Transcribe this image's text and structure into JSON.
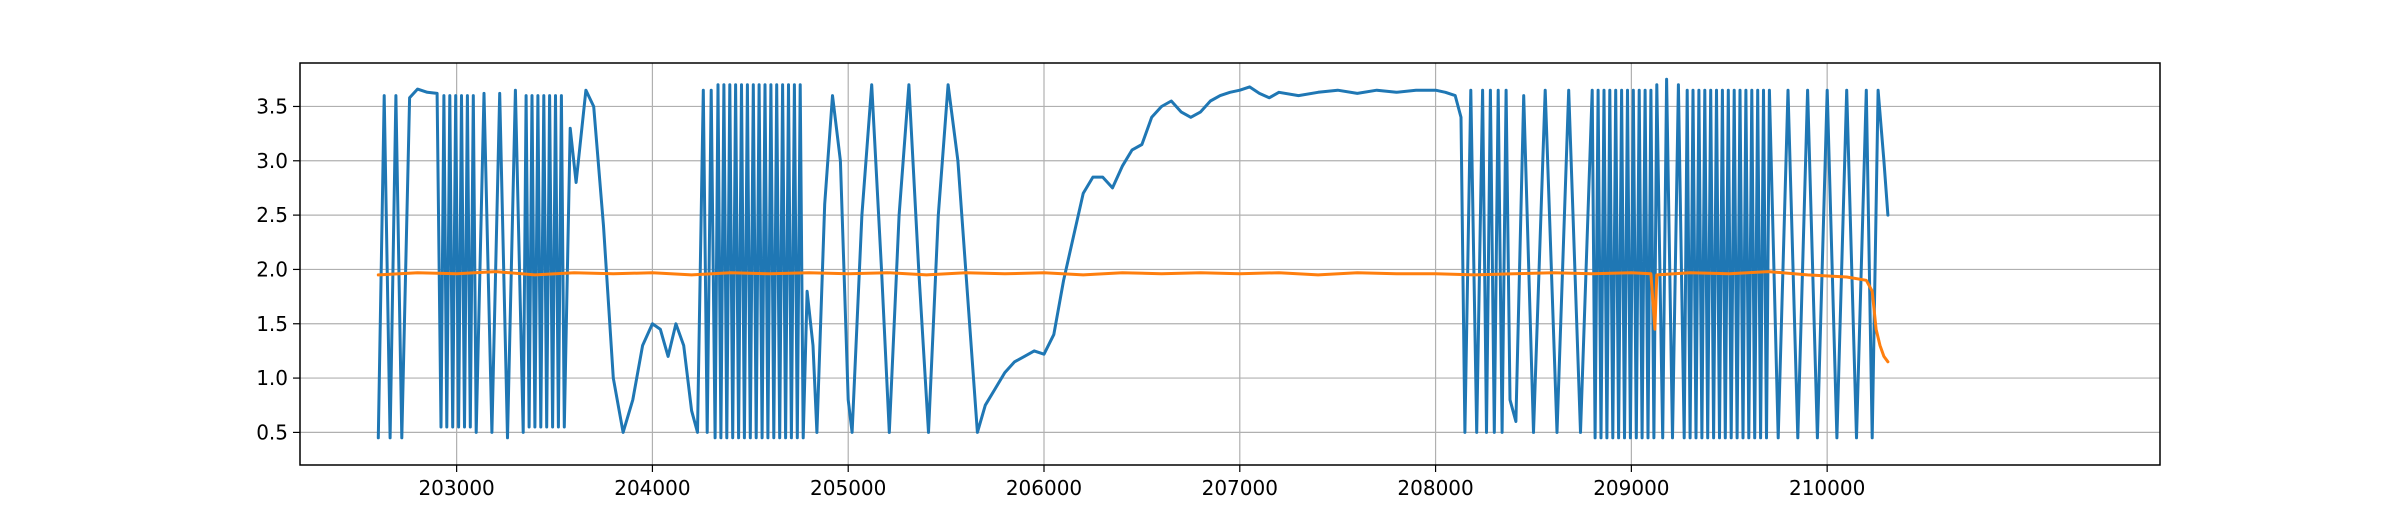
{
  "chart_data": {
    "type": "line",
    "title": "",
    "xlabel": "",
    "ylabel": "",
    "xlim": [
      202200,
      211700
    ],
    "ylim": [
      0.2,
      3.9
    ],
    "grid": true,
    "legend": "none",
    "xticks": [
      203000,
      204000,
      205000,
      206000,
      207000,
      208000,
      209000,
      210000
    ],
    "xtick_labels": [
      "203000",
      "204000",
      "205000",
      "206000",
      "207000",
      "208000",
      "209000",
      "210000"
    ],
    "yticks": [
      0.5,
      1.0,
      1.5,
      2.0,
      2.5,
      3.0,
      3.5
    ],
    "ytick_labels": [
      "0.5",
      "1.0",
      "1.5",
      "2.0",
      "2.5",
      "3.0",
      "3.5"
    ],
    "series": [
      {
        "color": "#1f77b4",
        "points": [
          [
            202600,
            0.45
          ],
          [
            202630,
            3.6
          ],
          [
            202660,
            0.45
          ],
          [
            202690,
            3.6
          ],
          [
            202720,
            0.45
          ],
          [
            202760,
            3.58
          ],
          [
            202800,
            3.66
          ],
          [
            202850,
            3.63
          ],
          [
            202900,
            3.62
          ],
          [
            202920,
            0.55
          ],
          [
            202935,
            3.6
          ],
          [
            202950,
            0.55
          ],
          [
            202965,
            3.6
          ],
          [
            202980,
            0.55
          ],
          [
            202995,
            3.6
          ],
          [
            203010,
            0.55
          ],
          [
            203025,
            3.6
          ],
          [
            203040,
            0.55
          ],
          [
            203055,
            3.6
          ],
          [
            203070,
            0.55
          ],
          [
            203085,
            3.6
          ],
          [
            203100,
            0.5
          ],
          [
            203140,
            3.62
          ],
          [
            203180,
            0.5
          ],
          [
            203220,
            3.62
          ],
          [
            203260,
            0.45
          ],
          [
            203300,
            3.65
          ],
          [
            203340,
            0.5
          ],
          [
            203355,
            3.6
          ],
          [
            203370,
            0.55
          ],
          [
            203385,
            3.6
          ],
          [
            203400,
            0.55
          ],
          [
            203415,
            3.6
          ],
          [
            203430,
            0.55
          ],
          [
            203445,
            3.6
          ],
          [
            203460,
            0.55
          ],
          [
            203475,
            3.6
          ],
          [
            203490,
            0.55
          ],
          [
            203505,
            3.6
          ],
          [
            203520,
            0.55
          ],
          [
            203535,
            3.6
          ],
          [
            203550,
            0.55
          ],
          [
            203580,
            3.3
          ],
          [
            203610,
            2.8
          ],
          [
            203660,
            3.65
          ],
          [
            203700,
            3.5
          ],
          [
            203750,
            2.4
          ],
          [
            203800,
            1.0
          ],
          [
            203850,
            0.5
          ],
          [
            203900,
            0.8
          ],
          [
            203950,
            1.3
          ],
          [
            204000,
            1.5
          ],
          [
            204040,
            1.45
          ],
          [
            204080,
            1.2
          ],
          [
            204120,
            1.5
          ],
          [
            204160,
            1.3
          ],
          [
            204200,
            0.7
          ],
          [
            204230,
            0.5
          ],
          [
            204260,
            3.65
          ],
          [
            204280,
            0.5
          ],
          [
            204300,
            3.65
          ],
          [
            204320,
            0.45
          ],
          [
            204335,
            3.7
          ],
          [
            204350,
            0.45
          ],
          [
            204365,
            3.7
          ],
          [
            204380,
            0.45
          ],
          [
            204395,
            3.7
          ],
          [
            204410,
            0.45
          ],
          [
            204425,
            3.7
          ],
          [
            204440,
            0.45
          ],
          [
            204455,
            3.7
          ],
          [
            204470,
            0.45
          ],
          [
            204485,
            3.7
          ],
          [
            204500,
            0.45
          ],
          [
            204515,
            3.7
          ],
          [
            204530,
            0.45
          ],
          [
            204545,
            3.7
          ],
          [
            204560,
            0.45
          ],
          [
            204575,
            3.7
          ],
          [
            204590,
            0.45
          ],
          [
            204605,
            3.7
          ],
          [
            204620,
            0.45
          ],
          [
            204635,
            3.7
          ],
          [
            204650,
            0.45
          ],
          [
            204665,
            3.7
          ],
          [
            204680,
            0.45
          ],
          [
            204695,
            3.7
          ],
          [
            204710,
            0.45
          ],
          [
            204725,
            3.7
          ],
          [
            204740,
            0.45
          ],
          [
            204755,
            3.7
          ],
          [
            204770,
            0.45
          ],
          [
            204790,
            1.8
          ],
          [
            204820,
            1.3
          ],
          [
            204840,
            0.5
          ],
          [
            204880,
            2.6
          ],
          [
            204920,
            3.6
          ],
          [
            204960,
            3.0
          ],
          [
            205000,
            0.8
          ],
          [
            205020,
            0.5
          ],
          [
            205070,
            2.5
          ],
          [
            205120,
            3.7
          ],
          [
            205170,
            2.0
          ],
          [
            205210,
            0.5
          ],
          [
            205260,
            2.5
          ],
          [
            205310,
            3.7
          ],
          [
            205360,
            2.0
          ],
          [
            205410,
            0.5
          ],
          [
            205460,
            2.5
          ],
          [
            205510,
            3.7
          ],
          [
            205560,
            3.0
          ],
          [
            205620,
            1.5
          ],
          [
            205660,
            0.5
          ],
          [
            205700,
            0.75
          ],
          [
            205750,
            0.9
          ],
          [
            205800,
            1.05
          ],
          [
            205850,
            1.15
          ],
          [
            205900,
            1.2
          ],
          [
            205950,
            1.25
          ],
          [
            206000,
            1.22
          ],
          [
            206050,
            1.4
          ],
          [
            206100,
            1.9
          ],
          [
            206150,
            2.3
          ],
          [
            206200,
            2.7
          ],
          [
            206250,
            2.85
          ],
          [
            206300,
            2.85
          ],
          [
            206350,
            2.75
          ],
          [
            206400,
            2.95
          ],
          [
            206450,
            3.1
          ],
          [
            206500,
            3.15
          ],
          [
            206550,
            3.4
          ],
          [
            206600,
            3.5
          ],
          [
            206650,
            3.55
          ],
          [
            206700,
            3.45
          ],
          [
            206750,
            3.4
          ],
          [
            206800,
            3.45
          ],
          [
            206850,
            3.55
          ],
          [
            206900,
            3.6
          ],
          [
            206950,
            3.63
          ],
          [
            207000,
            3.65
          ],
          [
            207050,
            3.68
          ],
          [
            207100,
            3.62
          ],
          [
            207150,
            3.58
          ],
          [
            207200,
            3.63
          ],
          [
            207300,
            3.6
          ],
          [
            207400,
            3.63
          ],
          [
            207500,
            3.65
          ],
          [
            207600,
            3.62
          ],
          [
            207700,
            3.65
          ],
          [
            207800,
            3.63
          ],
          [
            207900,
            3.65
          ],
          [
            208000,
            3.65
          ],
          [
            208050,
            3.63
          ],
          [
            208100,
            3.6
          ],
          [
            208130,
            3.4
          ],
          [
            208150,
            0.5
          ],
          [
            208180,
            3.65
          ],
          [
            208210,
            0.5
          ],
          [
            208240,
            3.65
          ],
          [
            208260,
            0.5
          ],
          [
            208280,
            3.65
          ],
          [
            208300,
            0.5
          ],
          [
            208320,
            3.65
          ],
          [
            208340,
            0.5
          ],
          [
            208360,
            3.65
          ],
          [
            208380,
            0.8
          ],
          [
            208410,
            0.6
          ],
          [
            208450,
            3.6
          ],
          [
            208500,
            0.5
          ],
          [
            208560,
            3.65
          ],
          [
            208620,
            0.5
          ],
          [
            208680,
            3.65
          ],
          [
            208740,
            0.5
          ],
          [
            208800,
            3.65
          ],
          [
            208815,
            0.45
          ],
          [
            208830,
            3.65
          ],
          [
            208845,
            0.45
          ],
          [
            208860,
            3.65
          ],
          [
            208875,
            0.45
          ],
          [
            208890,
            3.65
          ],
          [
            208905,
            0.45
          ],
          [
            208920,
            3.65
          ],
          [
            208935,
            0.45
          ],
          [
            208950,
            3.65
          ],
          [
            208965,
            0.45
          ],
          [
            208980,
            3.65
          ],
          [
            208995,
            0.45
          ],
          [
            209010,
            3.65
          ],
          [
            209025,
            0.45
          ],
          [
            209040,
            3.65
          ],
          [
            209055,
            0.45
          ],
          [
            209070,
            3.65
          ],
          [
            209085,
            0.45
          ],
          [
            209100,
            3.65
          ],
          [
            209115,
            0.45
          ],
          [
            209130,
            3.7
          ],
          [
            209160,
            0.45
          ],
          [
            209180,
            3.75
          ],
          [
            209210,
            0.45
          ],
          [
            209240,
            3.7
          ],
          [
            209270,
            0.45
          ],
          [
            209285,
            3.65
          ],
          [
            209300,
            0.45
          ],
          [
            209315,
            3.65
          ],
          [
            209330,
            0.45
          ],
          [
            209345,
            3.65
          ],
          [
            209360,
            0.45
          ],
          [
            209375,
            3.65
          ],
          [
            209390,
            0.45
          ],
          [
            209405,
            3.65
          ],
          [
            209420,
            0.45
          ],
          [
            209435,
            3.65
          ],
          [
            209450,
            0.45
          ],
          [
            209465,
            3.65
          ],
          [
            209480,
            0.45
          ],
          [
            209495,
            3.65
          ],
          [
            209510,
            0.45
          ],
          [
            209525,
            3.65
          ],
          [
            209540,
            0.45
          ],
          [
            209555,
            3.65
          ],
          [
            209570,
            0.45
          ],
          [
            209585,
            3.65
          ],
          [
            209600,
            0.45
          ],
          [
            209615,
            3.65
          ],
          [
            209630,
            0.45
          ],
          [
            209645,
            3.65
          ],
          [
            209660,
            0.45
          ],
          [
            209675,
            3.65
          ],
          [
            209690,
            0.45
          ],
          [
            209705,
            3.65
          ],
          [
            209750,
            0.45
          ],
          [
            209800,
            3.65
          ],
          [
            209850,
            0.45
          ],
          [
            209900,
            3.65
          ],
          [
            209950,
            0.45
          ],
          [
            210000,
            3.65
          ],
          [
            210050,
            0.45
          ],
          [
            210100,
            3.65
          ],
          [
            210150,
            0.45
          ],
          [
            210200,
            3.65
          ],
          [
            210230,
            0.45
          ],
          [
            210260,
            3.65
          ],
          [
            210290,
            3.0
          ],
          [
            210310,
            2.5
          ]
        ]
      },
      {
        "color": "#ff7f0e",
        "points": [
          [
            202600,
            1.95
          ],
          [
            202800,
            1.97
          ],
          [
            203000,
            1.96
          ],
          [
            203200,
            1.98
          ],
          [
            203400,
            1.95
          ],
          [
            203600,
            1.97
          ],
          [
            203800,
            1.96
          ],
          [
            204000,
            1.97
          ],
          [
            204200,
            1.95
          ],
          [
            204400,
            1.97
          ],
          [
            204600,
            1.96
          ],
          [
            204800,
            1.97
          ],
          [
            205000,
            1.96
          ],
          [
            205200,
            1.97
          ],
          [
            205400,
            1.95
          ],
          [
            205600,
            1.97
          ],
          [
            205800,
            1.96
          ],
          [
            206000,
            1.97
          ],
          [
            206200,
            1.95
          ],
          [
            206400,
            1.97
          ],
          [
            206600,
            1.96
          ],
          [
            206800,
            1.97
          ],
          [
            207000,
            1.96
          ],
          [
            207200,
            1.97
          ],
          [
            207400,
            1.95
          ],
          [
            207600,
            1.97
          ],
          [
            207800,
            1.96
          ],
          [
            208000,
            1.96
          ],
          [
            208200,
            1.95
          ],
          [
            208400,
            1.96
          ],
          [
            208600,
            1.97
          ],
          [
            208800,
            1.96
          ],
          [
            209000,
            1.97
          ],
          [
            209100,
            1.96
          ],
          [
            209120,
            1.45
          ],
          [
            209130,
            1.95
          ],
          [
            209300,
            1.97
          ],
          [
            209500,
            1.96
          ],
          [
            209700,
            1.98
          ],
          [
            209900,
            1.95
          ],
          [
            210100,
            1.93
          ],
          [
            210200,
            1.9
          ],
          [
            210230,
            1.8
          ],
          [
            210250,
            1.45
          ],
          [
            210270,
            1.3
          ],
          [
            210290,
            1.2
          ],
          [
            210310,
            1.15
          ]
        ]
      }
    ]
  }
}
